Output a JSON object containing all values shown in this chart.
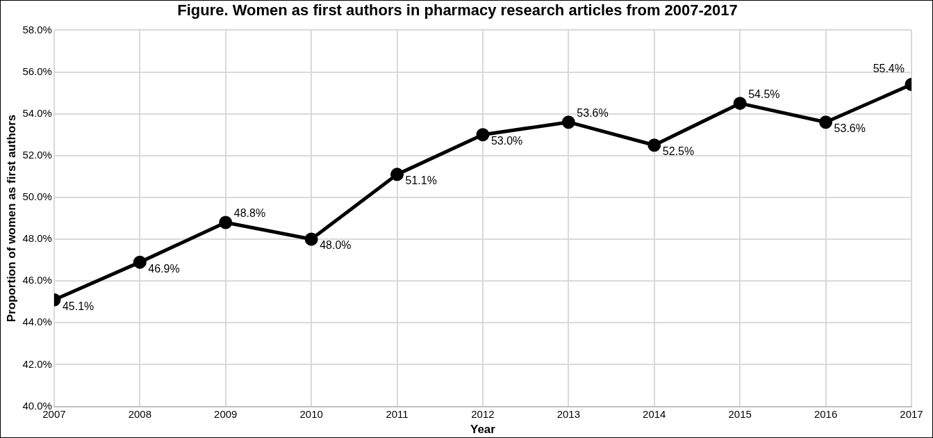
{
  "chart_data": {
    "type": "line",
    "title": "Figure. Women as first authors in pharmacy research articles from 2007-2017",
    "xlabel": "Year",
    "ylabel": "Proportion of women as first authors",
    "x": [
      2007,
      2008,
      2009,
      2010,
      2011,
      2012,
      2013,
      2014,
      2015,
      2016,
      2017
    ],
    "series": [
      {
        "color": "#000000",
        "values": [
          45.1,
          46.9,
          48.8,
          48.0,
          51.1,
          53.0,
          53.6,
          52.5,
          54.5,
          53.6,
          55.4
        ],
        "value_labels": [
          "45.1%",
          "46.9%",
          "48.8%",
          "48.0%",
          "51.1%",
          "53.0%",
          "53.6%",
          "52.5%",
          "54.5%",
          "53.6%",
          "55.4%"
        ]
      }
    ],
    "xlim": [
      2007,
      2017
    ],
    "xticks": [
      2007,
      2008,
      2009,
      2010,
      2011,
      2012,
      2013,
      2014,
      2015,
      2016,
      2017
    ],
    "ylim": [
      40,
      58
    ],
    "yticks": [
      {
        "value": 40,
        "label": "40.0%"
      },
      {
        "value": 42,
        "label": "42.0%"
      },
      {
        "value": 44,
        "label": "44.0%"
      },
      {
        "value": 46,
        "label": "46.0%"
      },
      {
        "value": 48,
        "label": "48.0%"
      },
      {
        "value": 50,
        "label": "50.0%"
      },
      {
        "value": 52,
        "label": "52.0%"
      },
      {
        "value": 54,
        "label": "54.0%"
      },
      {
        "value": 56,
        "label": "56.0%"
      },
      {
        "value": 58,
        "label": "58.0%"
      }
    ],
    "grid": true,
    "legend": false,
    "marker": "circle",
    "line_style": "solid"
  }
}
